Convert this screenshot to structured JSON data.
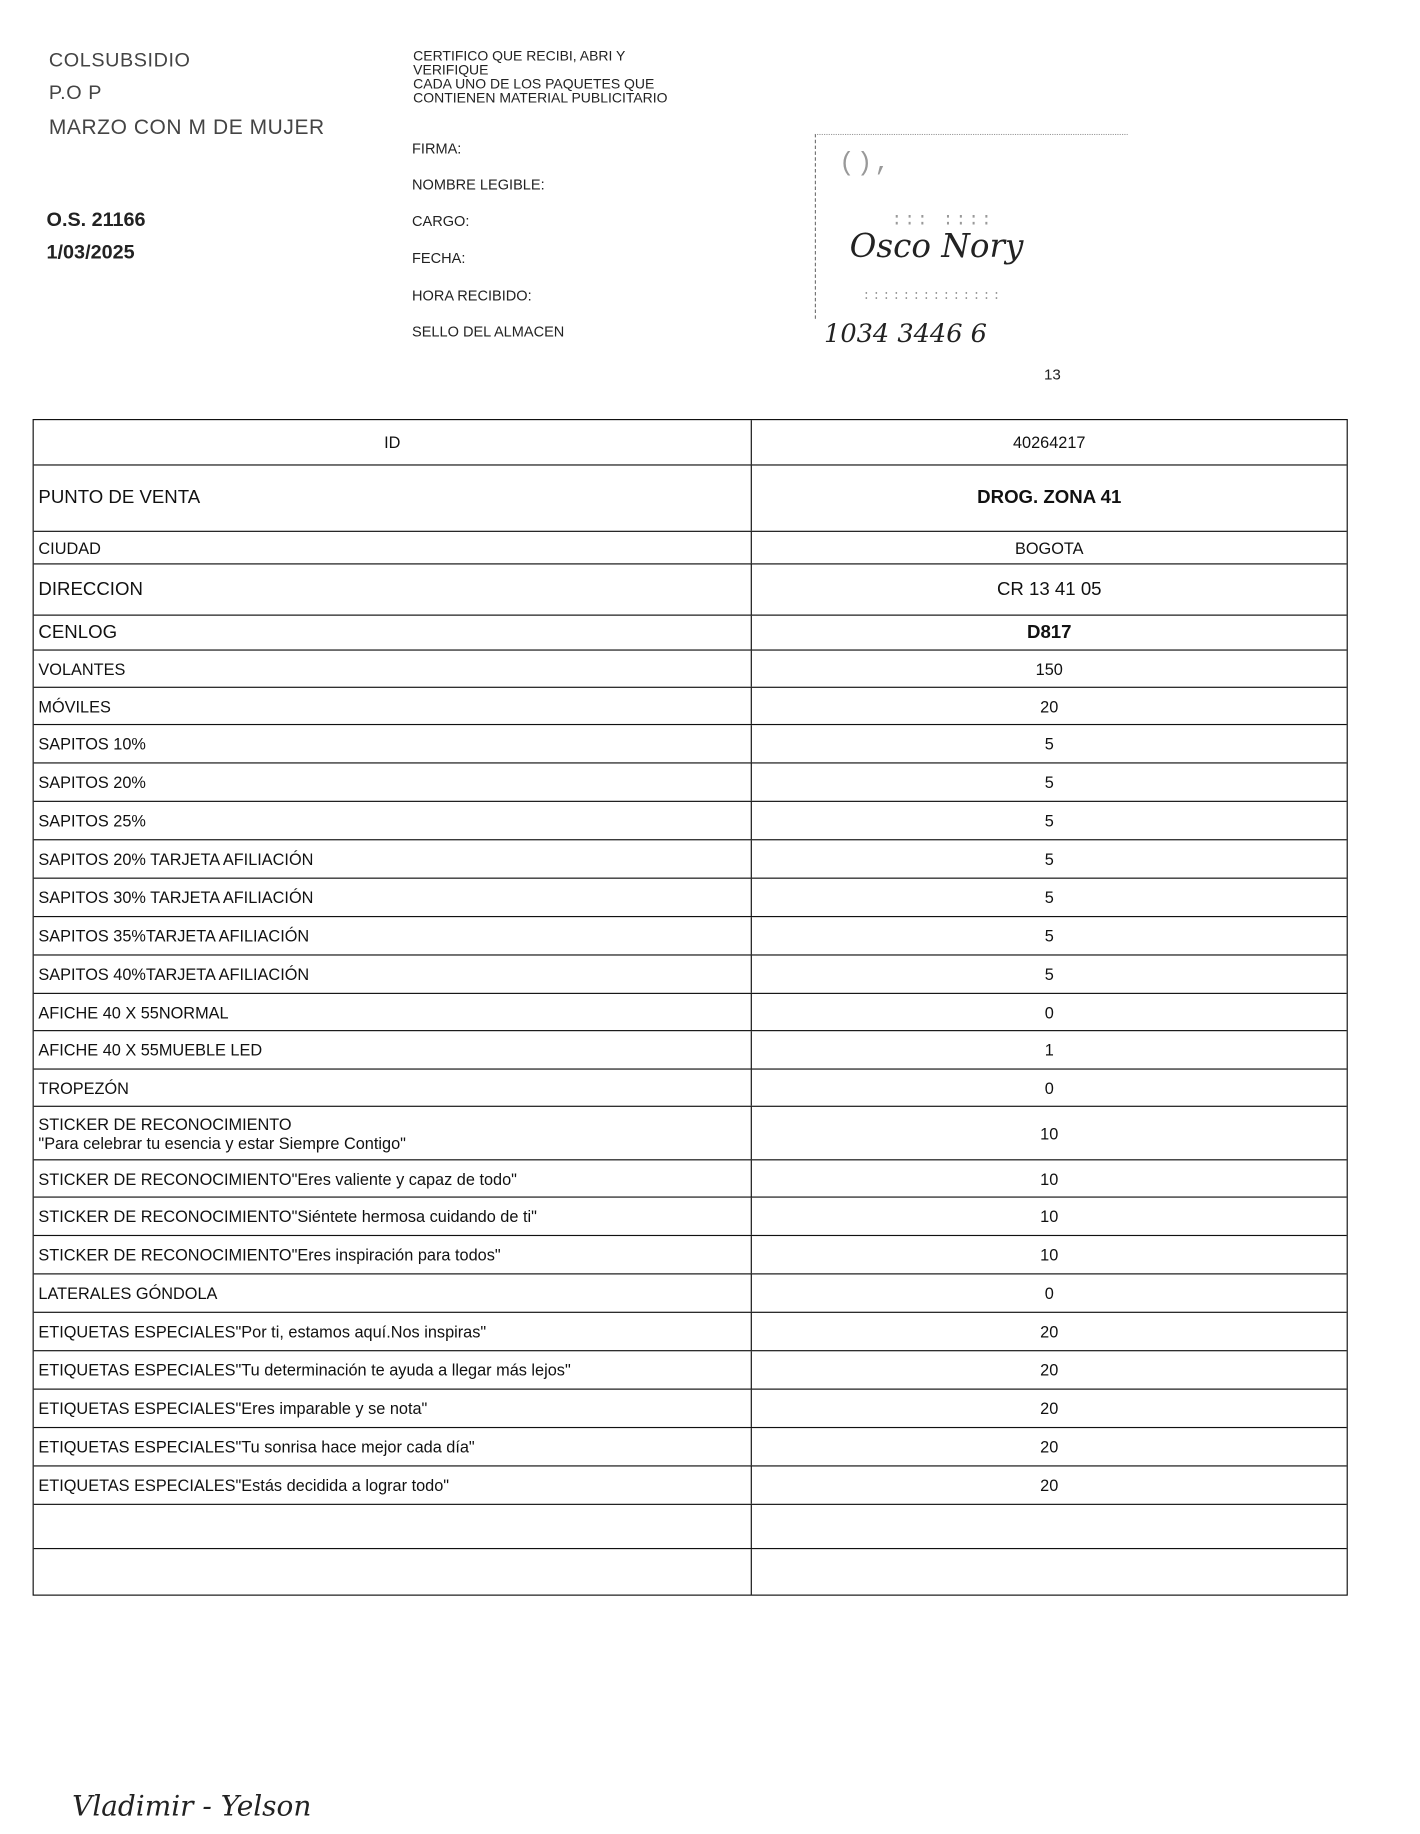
{
  "header": {
    "company": "COLSUBSIDIO",
    "type": "P.O P",
    "campaign": "MARZO CON M DE MUJER",
    "order": "O.S. 21166",
    "date": "1/03/2025"
  },
  "certification": {
    "lines": [
      "CERTIFICO QUE RECIBI, ABRI Y",
      "VERIFIQUE",
      "CADA  UNO DE LOS PAQUETES QUE",
      "CONTIENEN MATERIAL PUBLICITARIO"
    ],
    "fields": [
      "FIRMA:",
      "NOMBRE LEGIBLE:",
      "CARGO:",
      "FECHA:",
      "HORA RECIBIDO:",
      "SELLO DEL ALMACEN"
    ]
  },
  "stamp": {
    "handwritten_name": "Osco Nory",
    "handwritten_number": "1034 3446 6"
  },
  "page_number": "13",
  "table": {
    "rows": [
      {
        "label": "ID",
        "value": "40264217",
        "style": "id"
      },
      {
        "label": "PUNTO DE VENTA",
        "value": "DROG. ZONA 41",
        "style": "bold"
      },
      {
        "label": "CIUDAD",
        "value": "BOGOTA"
      },
      {
        "label": "DIRECCION",
        "value": "CR 13 41 05",
        "style": "bold"
      },
      {
        "label": "CENLOG",
        "value": "D817",
        "style": "bold"
      },
      {
        "label": "VOLANTES",
        "value": "150"
      },
      {
        "label": "MÓVILES",
        "value": "20"
      },
      {
        "label": "SAPITOS 10%",
        "value": "5"
      },
      {
        "label": "SAPITOS 20%",
        "value": "5"
      },
      {
        "label": "SAPITOS 25%",
        "value": "5"
      },
      {
        "label": "SAPITOS 20% TARJETA AFILIACIÓN",
        "value": "5"
      },
      {
        "label": "SAPITOS 30% TARJETA AFILIACIÓN",
        "value": "5"
      },
      {
        "label": "SAPITOS 35%TARJETA AFILIACIÓN",
        "value": "5"
      },
      {
        "label": "SAPITOS 40%TARJETA AFILIACIÓN",
        "value": "5"
      },
      {
        "label": "AFICHE 40 X 55NORMAL",
        "value": "0"
      },
      {
        "label": "AFICHE 40 X 55MUEBLE LED",
        "value": "1"
      },
      {
        "label": "TROPEZÓN",
        "value": "0"
      },
      {
        "label": "STICKER DE RECONOCIMIENTO",
        "label2": "\"Para celebrar tu esencia y estar Siempre Contigo\"",
        "value": "10"
      },
      {
        "label": "STICKER DE RECONOCIMIENTO\"Eres valiente y capaz de todo\"",
        "value": "10"
      },
      {
        "label": "STICKER DE RECONOCIMIENTO\"Siéntete hermosa cuidando de ti\"",
        "value": "10"
      },
      {
        "label": "STICKER DE RECONOCIMIENTO\"Eres inspiración para todos\"",
        "value": "10"
      },
      {
        "label": "LATERALES GÓNDOLA",
        "value": "0"
      },
      {
        "label": "ETIQUETAS ESPECIALES\"Por ti, estamos aquí.Nos inspiras\"",
        "value": "20"
      },
      {
        "label": "ETIQUETAS ESPECIALES\"Tu determinación te ayuda a llegar más lejos\"",
        "value": "20"
      },
      {
        "label": "ETIQUETAS ESPECIALES\"Eres imparable y se nota\"",
        "value": "20"
      },
      {
        "label": "ETIQUETAS ESPECIALES\"Tu sonrisa hace mejor cada día\"",
        "value": "20"
      },
      {
        "label": "ETIQUETAS ESPECIALES\"Estás decidida a lograr todo\"",
        "value": "20"
      },
      {
        "label": "",
        "value": ""
      },
      {
        "label": "",
        "value": ""
      }
    ]
  },
  "signature": "Vladimir - Yelson"
}
